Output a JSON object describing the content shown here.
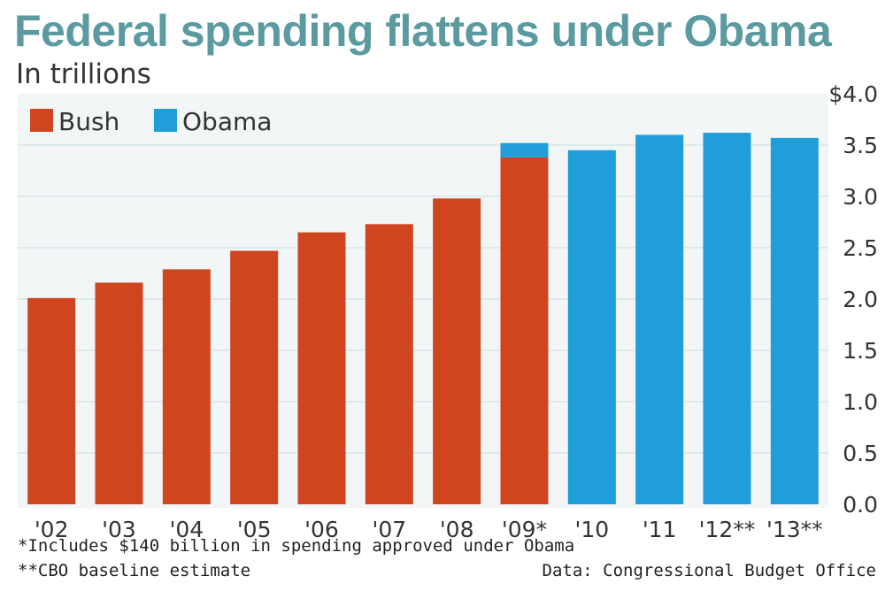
{
  "title": "Federal spending flattens under Obama",
  "subtitle": "In trillions",
  "footnotes": {
    "note1": "*Includes $140 billion in spending approved under Obama",
    "note2": "**CBO baseline estimate",
    "source": "Data: Congressional Budget Office"
  },
  "colors": {
    "bush": "#cf4520",
    "obama": "#1f9ed9",
    "title": "#5b9aa0"
  },
  "chart_data": {
    "type": "bar",
    "stacked": true,
    "categories": [
      "'02",
      "'03",
      "'04",
      "'05",
      "'06",
      "'07",
      "'08",
      "'09*",
      "'10",
      "'11",
      "'12**",
      "'13**"
    ],
    "series": [
      {
        "name": "Bush",
        "values": [
          2.01,
          2.16,
          2.29,
          2.47,
          2.65,
          2.73,
          2.98,
          3.38,
          0,
          0,
          0,
          0
        ]
      },
      {
        "name": "Obama",
        "values": [
          0,
          0,
          0,
          0,
          0,
          0,
          0,
          0.14,
          3.45,
          3.6,
          3.62,
          3.57
        ]
      }
    ],
    "ylim": [
      0,
      4.0
    ],
    "yticks": [
      "0.0",
      "0.5",
      "1.0",
      "1.5",
      "2.0",
      "2.5",
      "3.0",
      "3.5",
      "$4.0"
    ],
    "ytick_values": [
      0,
      0.5,
      1.0,
      1.5,
      2.0,
      2.5,
      3.0,
      3.5,
      4.0
    ],
    "legend": [
      "Bush",
      "Obama"
    ],
    "legend_position": "top-left",
    "grid": true,
    "xlabel": "",
    "ylabel": ""
  }
}
